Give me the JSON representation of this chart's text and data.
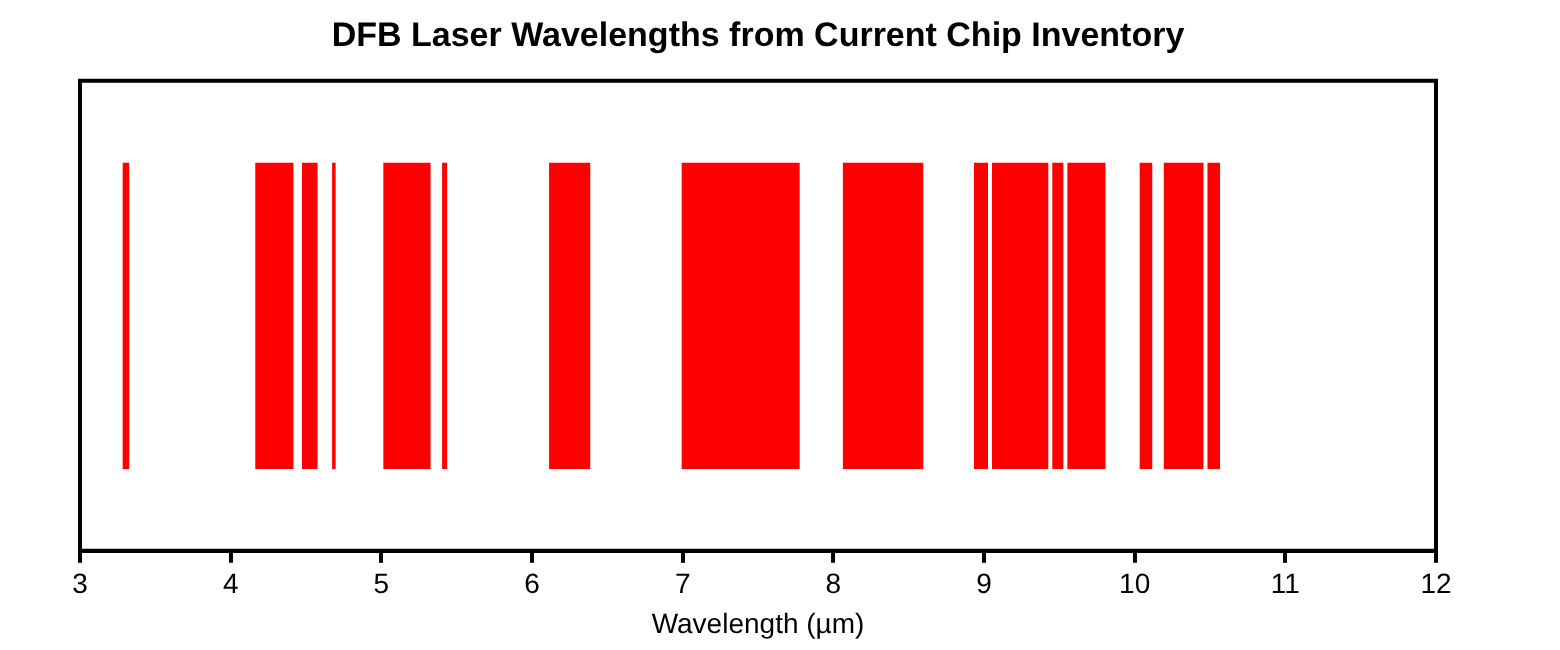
{
  "chart_data": {
    "type": "bar",
    "orientation": "horizontal",
    "title": "DFB Laser Wavelengths from Current Chip Inventory",
    "xlabel": "Wavelength (µm)",
    "categories": [
      null
    ],
    "series": [
      {
        "color": "#ff0000",
        "base": [
          3.27
        ],
        "values": [
          0.07
        ]
      },
      {
        "color": "#ff0000",
        "base": [
          4.15
        ],
        "values": [
          0.28
        ]
      },
      {
        "color": "#ff0000",
        "base": [
          4.46
        ],
        "values": [
          0.13
        ]
      },
      {
        "color": "#ff0000",
        "base": [
          4.66
        ],
        "values": [
          0.05
        ]
      },
      {
        "color": "#ff0000",
        "base": [
          5.0
        ],
        "values": [
          0.34
        ]
      },
      {
        "color": "#ff0000",
        "base": [
          5.39
        ],
        "values": [
          0.06
        ]
      },
      {
        "color": "#ff0000",
        "base": [
          6.1
        ],
        "values": [
          0.3
        ]
      },
      {
        "color": "#ff0000",
        "base": [
          6.98
        ],
        "values": [
          0.81
        ]
      },
      {
        "color": "#ff0000",
        "base": [
          8.05
        ],
        "values": [
          0.56
        ]
      },
      {
        "color": "#ff0000",
        "base": [
          8.92
        ],
        "values": [
          0.12
        ]
      },
      {
        "color": "#ff0000",
        "base": [
          9.04
        ],
        "values": [
          0.4
        ]
      },
      {
        "color": "#ff0000",
        "base": [
          9.44
        ],
        "values": [
          0.1
        ]
      },
      {
        "color": "#ff0000",
        "base": [
          9.54
        ],
        "values": [
          0.28
        ]
      },
      {
        "color": "#ff0000",
        "base": [
          10.02
        ],
        "values": [
          0.11
        ]
      },
      {
        "color": "#ff0000",
        "base": [
          10.18
        ],
        "values": [
          0.29
        ]
      },
      {
        "color": "#ff0000",
        "base": [
          10.47
        ],
        "values": [
          0.11
        ]
      }
    ],
    "xlim": [
      3,
      12
    ],
    "xticks": [
      3,
      4,
      5,
      6,
      7,
      8,
      9,
      10,
      11,
      12
    ],
    "grid": false,
    "legend": false
  }
}
